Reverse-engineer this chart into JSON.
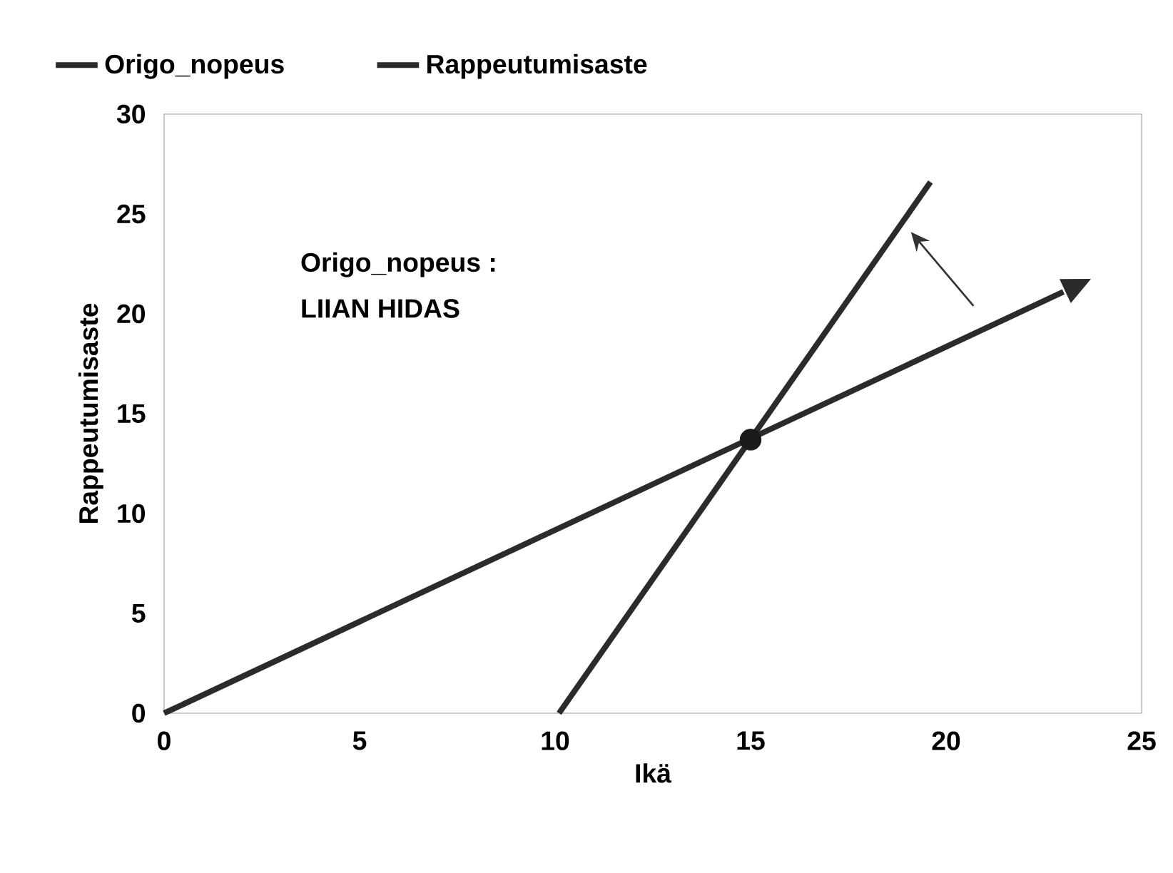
{
  "chart_data": {
    "type": "line",
    "xlabel": "Ikä",
    "ylabel": "Rappeutumisaste",
    "annotations": [
      "Origo_nopeus :",
      "LIIAN HIDAS"
    ],
    "xlim": [
      0,
      25
    ],
    "ylim": [
      0,
      30
    ],
    "xticks": [
      0,
      5,
      10,
      15,
      20,
      25
    ],
    "yticks": [
      0,
      5,
      10,
      15,
      20,
      25,
      30
    ],
    "legend": "top",
    "grid": false,
    "series": [
      {
        "name": "Origo_nopeus",
        "color": "#2b2b2b",
        "x": [
          0,
          23
        ],
        "values": [
          0,
          21.1
        ]
      },
      {
        "name": "Rappeutumisaste",
        "color": "#2b2b2b",
        "x": [
          10.1,
          19.6
        ],
        "values": [
          0,
          26.6
        ]
      },
      {
        "type": "scatter",
        "color": "#1a1a1a",
        "x": [
          15
        ],
        "values": [
          13.7
        ]
      }
    ]
  }
}
